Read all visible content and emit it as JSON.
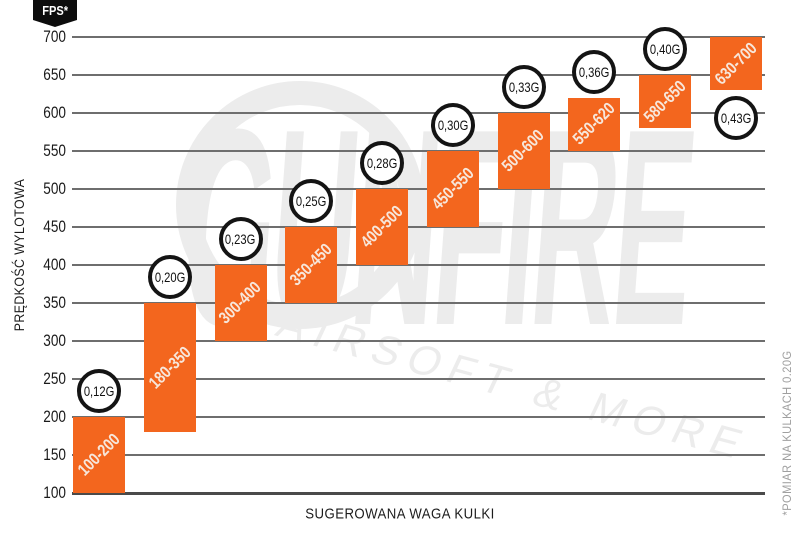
{
  "chart_data": {
    "type": "bar",
    "subtype": "floating-range-bars",
    "title": "",
    "ylim": [
      100,
      700
    ],
    "grid": true,
    "y_axis": {
      "label": "PRĘDKOŚĆ WYLOTOWA",
      "unit_badge": "FPS*",
      "tick_step": 50,
      "ticks": [
        100,
        150,
        200,
        250,
        300,
        350,
        400,
        450,
        500,
        550,
        600,
        650,
        700
      ]
    },
    "x_axis": {
      "label": "SUGEROWANA WAGA KULKI"
    },
    "footnote": "*POMIAR NA KULKACH 0.20G",
    "categories": [
      "0,12G",
      "0,20G",
      "0,23G",
      "0,25G",
      "0,28G",
      "0,30G",
      "0,33G",
      "0,36G",
      "0,40G",
      "0,43G"
    ],
    "bars": [
      {
        "weight": "0,12G",
        "fps_min": 100,
        "fps_max": 200,
        "label": "100-200",
        "badge_position": "above"
      },
      {
        "weight": "0,20G",
        "fps_min": 180,
        "fps_max": 350,
        "label": "180-350",
        "badge_position": "above"
      },
      {
        "weight": "0,23G",
        "fps_min": 300,
        "fps_max": 400,
        "label": "300-400",
        "badge_position": "above"
      },
      {
        "weight": "0,25G",
        "fps_min": 350,
        "fps_max": 450,
        "label": "350-450",
        "badge_position": "above"
      },
      {
        "weight": "0,28G",
        "fps_min": 400,
        "fps_max": 500,
        "label": "400-500",
        "badge_position": "above"
      },
      {
        "weight": "0,30G",
        "fps_min": 450,
        "fps_max": 550,
        "label": "450-550",
        "badge_position": "above"
      },
      {
        "weight": "0,33G",
        "fps_min": 500,
        "fps_max": 600,
        "label": "500-600",
        "badge_position": "above"
      },
      {
        "weight": "0,36G",
        "fps_min": 550,
        "fps_max": 620,
        "label": "550-620",
        "badge_position": "above"
      },
      {
        "weight": "0,40G",
        "fps_min": 580,
        "fps_max": 650,
        "label": "580-650",
        "badge_position": "above"
      },
      {
        "weight": "0,43G",
        "fps_min": 630,
        "fps_max": 700,
        "label": "630-700",
        "badge_position": "below"
      }
    ],
    "watermark": {
      "brand": "GUNFIRE",
      "tagline": "AIRSOFT & MORE"
    },
    "colors": {
      "bar": "#F3661E",
      "bar_label": "#F7E7DB",
      "grid": "#6e6e6e",
      "baseline": "#4a4a4a",
      "tick": "#1a1a1a",
      "badge_bg": "#0d0d0d",
      "badge_text": "#ffffff",
      "circle_border": "#141414",
      "circle_bg": "#ffffff",
      "circle_text": "#111111",
      "note": "#9f9f9f",
      "watermark": "#ececec"
    }
  }
}
